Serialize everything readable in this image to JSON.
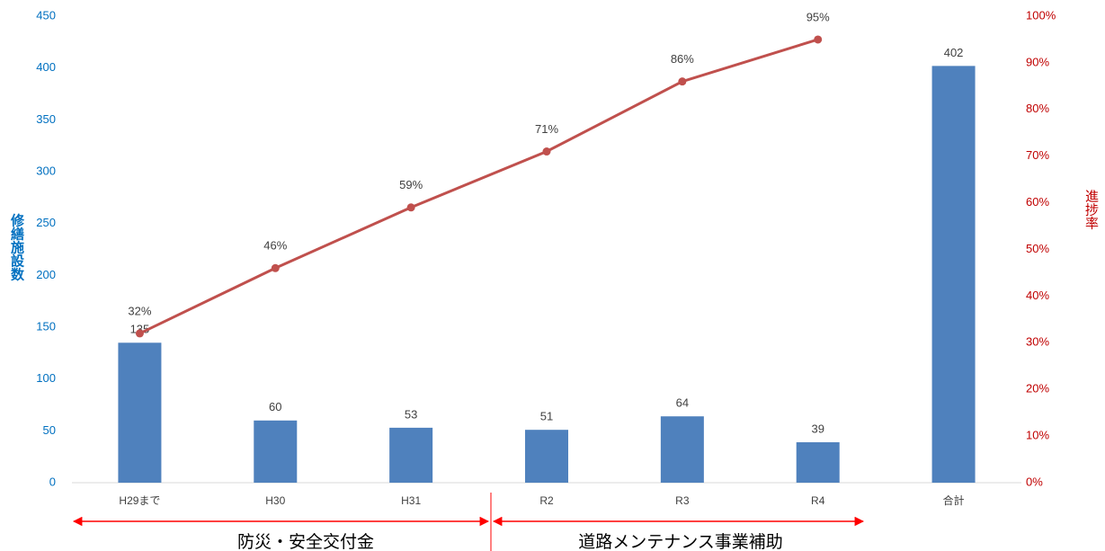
{
  "chart_data": {
    "type": "combo",
    "categories": [
      "H29まで",
      "H30",
      "H31",
      "R2",
      "R3",
      "R4",
      "合計"
    ],
    "series": [
      {
        "name": "修繕施設数",
        "type": "bar",
        "color": "#4f81bd",
        "values": [
          135,
          60,
          53,
          51,
          64,
          39,
          402
        ]
      },
      {
        "name": "進捗率",
        "type": "line",
        "axis": "y2",
        "color": "#c0504d",
        "values": [
          32,
          46,
          59,
          71,
          86,
          95,
          null
        ],
        "value_labels": [
          "32%",
          "46%",
          "59%",
          "71%",
          "86%",
          "95%",
          null
        ]
      }
    ],
    "ylabel": "修繕施設数",
    "y2label": "進捗率",
    "ylim": [
      0,
      450
    ],
    "yticks": [
      0,
      50,
      100,
      150,
      200,
      250,
      300,
      350,
      400,
      450
    ],
    "y2lim": [
      0,
      100
    ],
    "y2ticks": [
      {
        "value": 0,
        "label": "0%"
      },
      {
        "value": 10,
        "label": "10%"
      },
      {
        "value": 20,
        "label": "20%"
      },
      {
        "value": 30,
        "label": "30%"
      },
      {
        "value": 40,
        "label": "40%"
      },
      {
        "value": 50,
        "label": "50%"
      },
      {
        "value": 60,
        "label": "60%"
      },
      {
        "value": 70,
        "label": "70%"
      },
      {
        "value": 80,
        "label": "80%"
      },
      {
        "value": 90,
        "label": "90%"
      },
      {
        "value": 100,
        "label": "100%"
      }
    ],
    "ytick_color": "#0070c0",
    "y2tick_color": "#c00000",
    "annotations": [
      "防災・安全交付金",
      "道路メンテナンス事業補助"
    ]
  }
}
